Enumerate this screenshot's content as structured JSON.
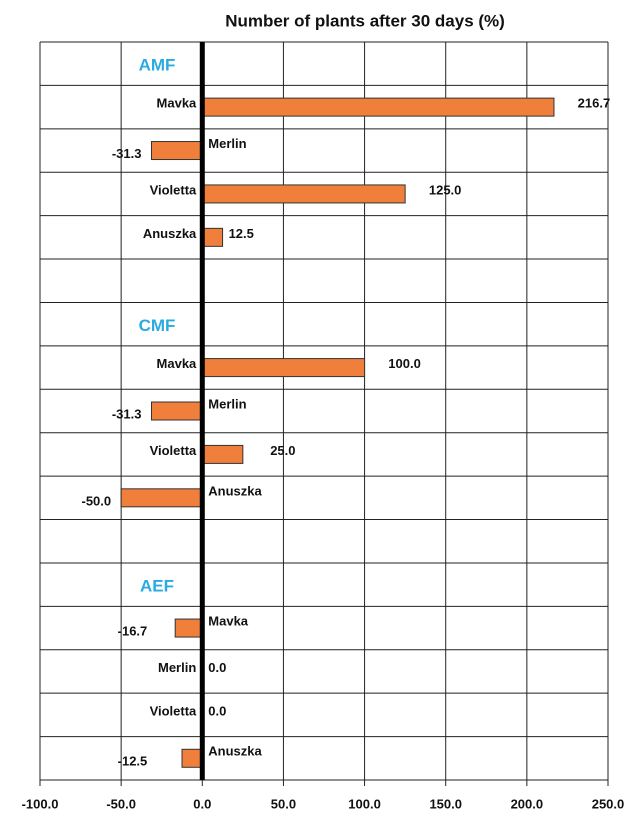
{
  "chart_data": {
    "type": "hbar",
    "title": "Number of plants after 30 days  (%)",
    "color": "#f07f3c",
    "groups": [
      {
        "name": "AMF",
        "categories": [
          "Mavka",
          "Merlin",
          "Violetta",
          "Anuszka"
        ],
        "values": [
          216.7,
          -31.3,
          125.0,
          12.5
        ],
        "value_labels": [
          "216.7",
          "-31.3",
          "125.0",
          "12.5"
        ]
      },
      {
        "name": "CMF",
        "categories": [
          "Mavka",
          "Merlin",
          "Violetta",
          "Anuszka"
        ],
        "values": [
          100.0,
          -31.3,
          25.0,
          -50.0
        ],
        "value_labels": [
          "100.0",
          "-31.3",
          "25.0",
          "-50.0"
        ]
      },
      {
        "name": "AEF",
        "categories": [
          "Mavka",
          "Merlin",
          "Violetta",
          "Anuszka"
        ],
        "values": [
          -16.7,
          0.0,
          0.0,
          -12.5
        ],
        "value_labels": [
          "-16.7",
          "0.0",
          "0.0",
          "-12.5"
        ]
      }
    ],
    "xlim": [
      -100,
      250
    ],
    "xticks": [
      {
        "value": -100,
        "label": "-100.0"
      },
      {
        "value": -50,
        "label": "-50.0"
      },
      {
        "value": 0,
        "label": "0.0"
      },
      {
        "value": 50,
        "label": "50.0"
      },
      {
        "value": 100,
        "label": "100.0"
      },
      {
        "value": 150,
        "label": "150.0"
      },
      {
        "value": 200,
        "label": "200.0"
      },
      {
        "value": 250,
        "label": "250.0"
      }
    ],
    "grid": true
  }
}
